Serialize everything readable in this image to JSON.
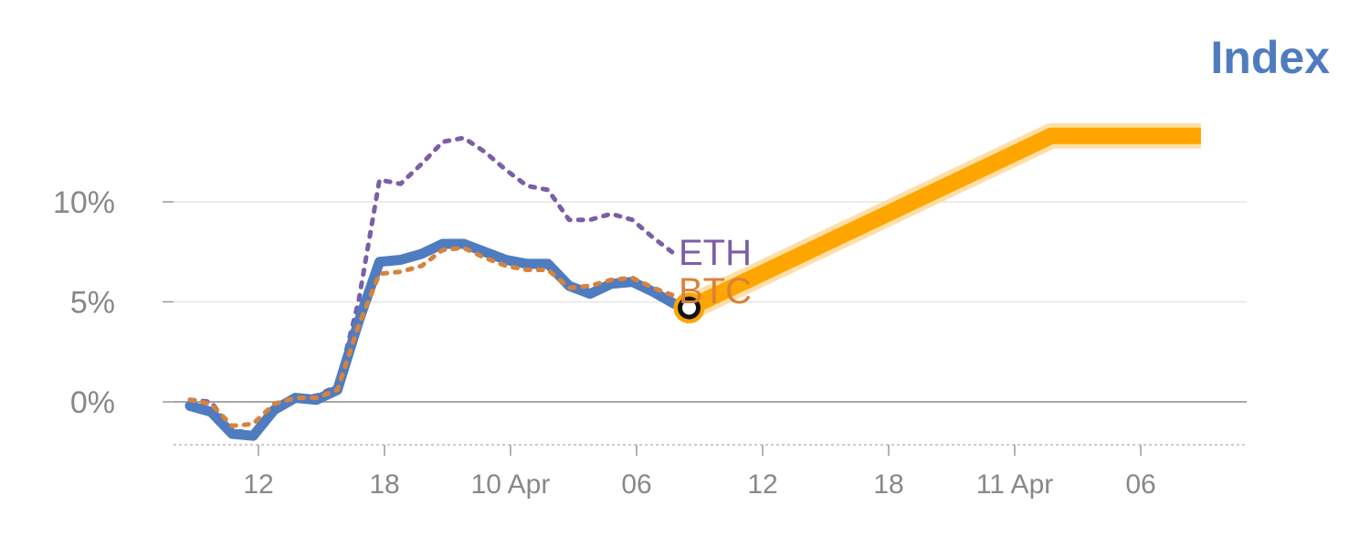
{
  "title": "Index",
  "colors": {
    "title": "#4f7cbf",
    "grid": "#e6e6e6",
    "zero_line": "#888888",
    "axis_text": "#888888",
    "index": "#4f7cbf",
    "eth": "#7b5ea7",
    "btc": "#d9823b",
    "projection": "#ffa500",
    "projection_halo": "#ffd791"
  },
  "chart_data": {
    "type": "line",
    "x_ticks": [
      "12",
      "18",
      "10 Apr",
      "06",
      "12",
      "18",
      "11 Apr",
      "06"
    ],
    "y_ticks": [
      "0%",
      "5%",
      "10%"
    ],
    "y_tick_values": [
      0,
      5,
      10
    ],
    "ylim": [
      -2,
      14
    ],
    "grid": true,
    "series": [
      {
        "key": "index",
        "values": [
          -0.2,
          -0.5,
          -1.6,
          -1.7,
          -0.4,
          0.2,
          0.1,
          0.6,
          4.0,
          7.0,
          7.1,
          7.4,
          7.9,
          7.9,
          7.5,
          7.1,
          6.9,
          6.9,
          5.8,
          5.4,
          5.9,
          6.0,
          5.5,
          4.9
        ],
        "style": "solid"
      },
      {
        "key": "eth",
        "name": "ETH",
        "values": [
          0.1,
          0.0,
          -1.4,
          -1.6,
          -0.2,
          0.2,
          0.3,
          0.8,
          5.0,
          11.1,
          10.9,
          11.9,
          13.0,
          13.2,
          12.5,
          11.6,
          10.8,
          10.6,
          9.1,
          9.1,
          9.4,
          9.1,
          8.2,
          7.4
        ],
        "style": "dotted"
      },
      {
        "key": "btc",
        "name": "BTC",
        "values": [
          0.1,
          -0.1,
          -1.2,
          -1.1,
          -0.1,
          0.2,
          0.2,
          0.6,
          3.8,
          6.4,
          6.5,
          6.8,
          7.6,
          7.7,
          7.2,
          6.8,
          6.6,
          6.6,
          5.7,
          5.8,
          6.1,
          6.2,
          5.7,
          5.3
        ],
        "style": "dotted"
      },
      {
        "key": "projection",
        "values": [
          4.7,
          13.3,
          13.3
        ],
        "x_index": [
          23.7,
          40.9,
          48.0
        ],
        "style": "band"
      }
    ],
    "marker": {
      "series": "index",
      "value": 4.7,
      "x_index": 23.7
    }
  }
}
